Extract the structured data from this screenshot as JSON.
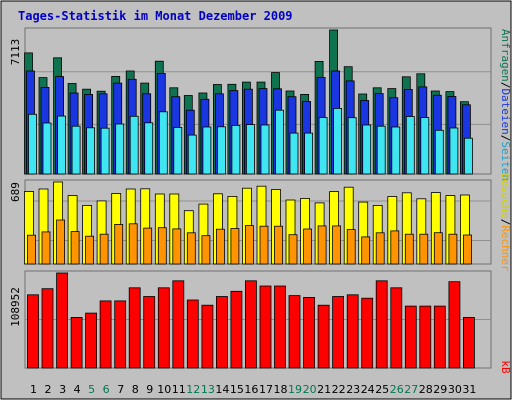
{
  "chart_data": {
    "type": "bar",
    "title": "Tages-Statistik im Monat Dezember 2009",
    "categories": [
      "1",
      "2",
      "3",
      "4",
      "5",
      "6",
      "7",
      "8",
      "9",
      "10",
      "11",
      "12",
      "13",
      "14",
      "15",
      "16",
      "17",
      "18",
      "19",
      "20",
      "21",
      "22",
      "23",
      "24",
      "25",
      "26",
      "27",
      "28",
      "29",
      "30",
      "31"
    ],
    "weekend_days": [
      "5",
      "6",
      "12",
      "13",
      "19",
      "20",
      "26",
      "27"
    ],
    "panels": [
      {
        "id": "top",
        "scale_label": "7113",
        "ymax": 7113,
        "series": [
          {
            "name": "Anfragen",
            "color": "#0f7350",
            "values": [
              5980,
              4760,
              5740,
              4470,
              4190,
              4090,
              4820,
              5090,
              4490,
              5570,
              4260,
              3880,
              4000,
              4420,
              4430,
              4540,
              4540,
              5010,
              4100,
              3930,
              5560,
              7113,
              5300,
              3950,
              4260,
              4220,
              4800,
              4950,
              4100,
              4070,
              3570
            ]
          },
          {
            "name": "Dateien",
            "color": "#1a36e0",
            "values": [
              5090,
              4280,
              4810,
              4000,
              3930,
              3960,
              4490,
              4680,
              3960,
              4970,
              3820,
              3150,
              3690,
              3960,
              4120,
              4190,
              4220,
              4210,
              3820,
              3580,
              4770,
              5090,
              4600,
              3630,
              3970,
              3770,
              4180,
              4300,
              3890,
              3830,
              3420
            ]
          },
          {
            "name": "Seiten",
            "color": "#3fe6f2",
            "values": [
              2950,
              2520,
              2860,
              2360,
              2280,
              2260,
              2470,
              2850,
              2530,
              3070,
              2300,
              1920,
              2320,
              2330,
              2400,
              2440,
              2420,
              3150,
              2020,
              2020,
              2790,
              3240,
              2780,
              2420,
              2360,
              2320,
              2840,
              2790,
              2160,
              2270,
              1770
            ]
          }
        ]
      },
      {
        "id": "middle",
        "scale_label": "689",
        "ymax": 689,
        "series": [
          {
            "name": "Besuche",
            "color": "#ffff00",
            "values": [
              610,
              630,
              689,
              575,
              492,
              530,
              592,
              630,
              632,
              588,
              588,
              448,
              503,
              590,
              568,
              637,
              654,
              626,
              538,
              551,
              513,
              608,
              645,
              520,
              492,
              567,
              598,
              548,
              600,
              575,
              580
            ]
          },
          {
            "name": "Rechner",
            "color": "#ff9400",
            "values": [
              242,
              270,
              370,
              272,
              234,
              250,
              333,
              338,
              302,
              305,
              295,
              262,
              238,
              292,
              298,
              323,
              318,
              318,
              246,
              294,
              320,
              320,
              289,
              228,
              262,
              278,
              250,
              250,
              263,
              250,
              244
            ]
          }
        ]
      },
      {
        "id": "bottom",
        "scale_label": "108952",
        "ymax": 108952,
        "series": [
          {
            "name": "kB",
            "color": "#ff0000",
            "values": [
              84000,
              91000,
              108952,
              58000,
              63000,
              77000,
              77000,
              92000,
              82000,
              92000,
              100000,
              78000,
              72000,
              82000,
              88000,
              100000,
              94000,
              94000,
              83000,
              81000,
              72000,
              82000,
              84000,
              80000,
              100000,
              92000,
              71000,
              71000,
              71000,
              99000,
              58000
            ]
          }
        ]
      }
    ],
    "legend": {
      "top": [
        {
          "text": "Anfragen",
          "color": "#0f7350"
        },
        {
          "text": "/",
          "color": "#000000"
        },
        {
          "text": "Dateien",
          "color": "#1a36e0"
        },
        {
          "text": "/",
          "color": "#000000"
        },
        {
          "text": "Seiten",
          "color": "#1a9ec8"
        }
      ],
      "middle": [
        {
          "text": "Besuche",
          "color": "#d0d000"
        },
        {
          "text": "/",
          "color": "#000000"
        },
        {
          "text": "Rechner",
          "color": "#ff9400"
        }
      ],
      "bottom": [
        {
          "text": "kB",
          "color": "#ff0000"
        }
      ]
    },
    "colors": {
      "background": "#c0c0c0",
      "title": "#0000c8",
      "day_weekday": "#000000",
      "day_weekend": "#007850",
      "gridline": "#8f8f8f"
    },
    "grid": true
  }
}
